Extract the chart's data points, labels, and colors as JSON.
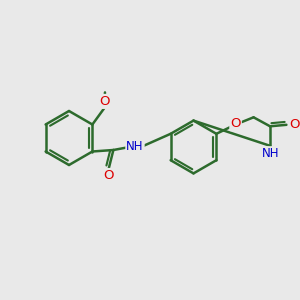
{
  "background_color": "#e9e9e9",
  "bond_color": "#2d6b2d",
  "bond_width": 1.8,
  "atom_colors": {
    "O": "#dd0000",
    "N": "#0000cc",
    "C": "#2d6b2d",
    "H": "#444444"
  },
  "font_size": 8.5,
  "fig_width": 3.0,
  "fig_height": 3.0,
  "dpi": 100
}
